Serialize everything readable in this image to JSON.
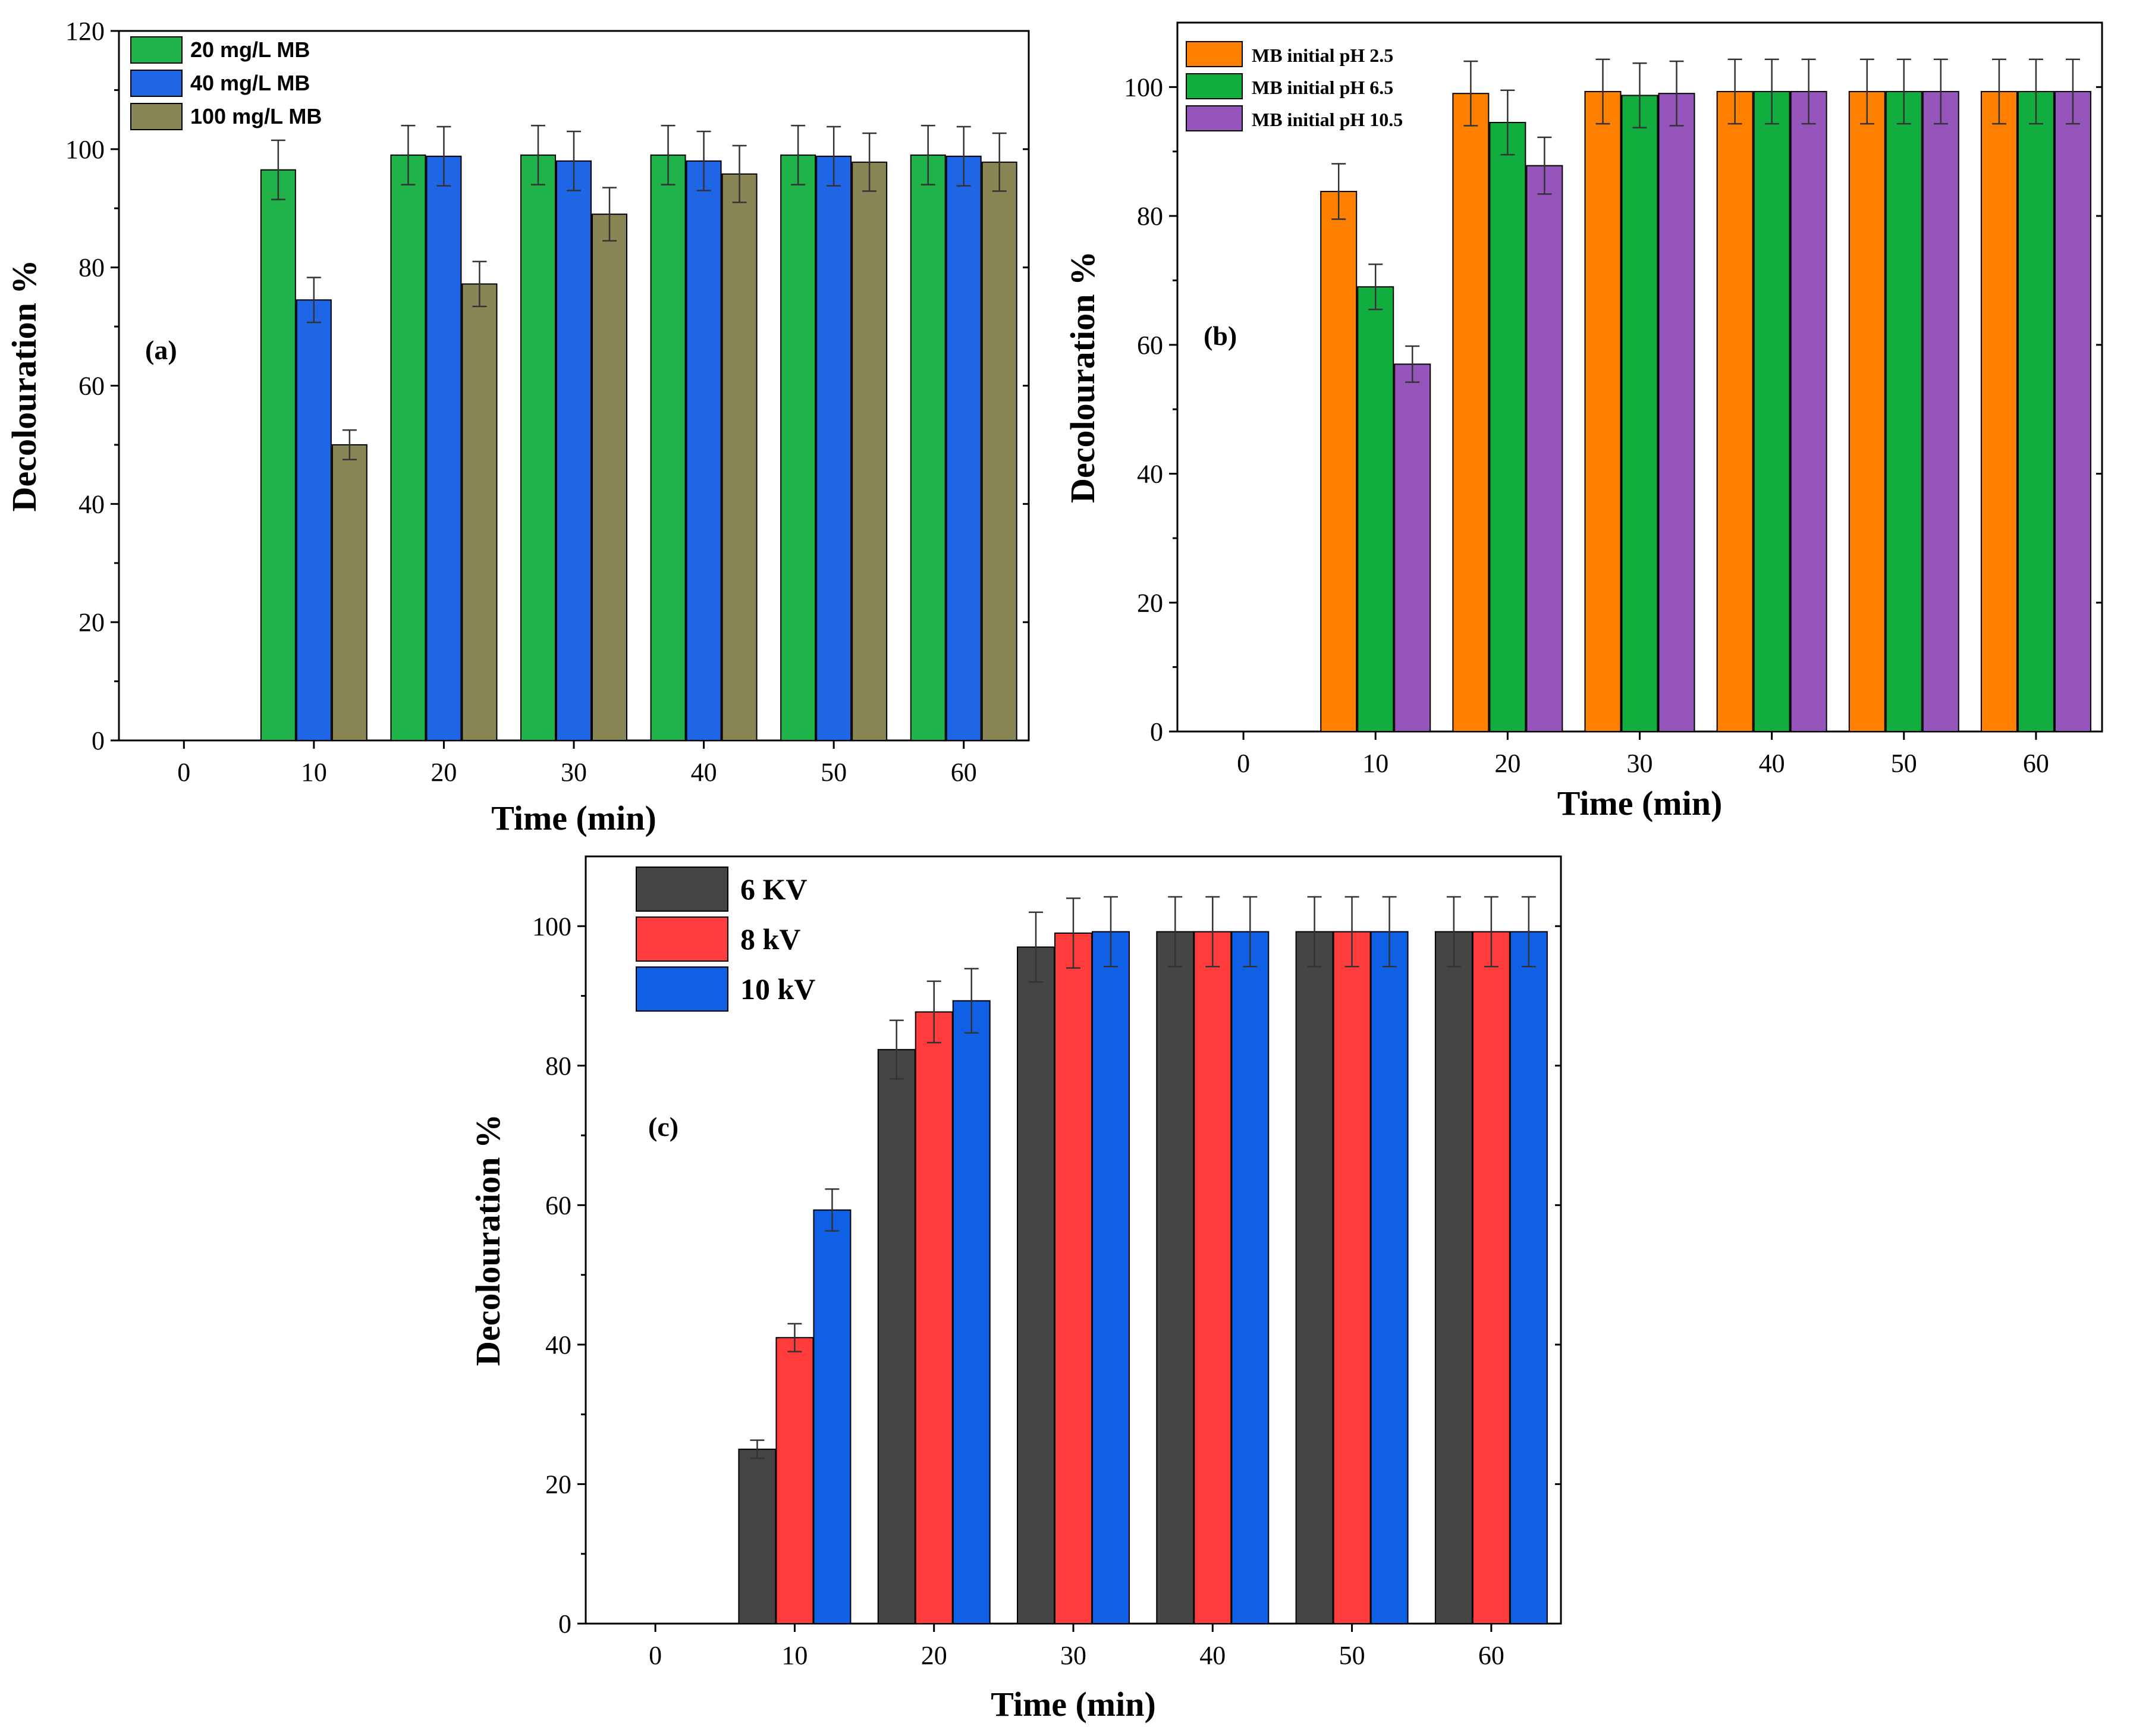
{
  "chart_data": [
    {
      "type": "bar",
      "panel": "(a)",
      "categories": [
        "0",
        "10",
        "20",
        "30",
        "40",
        "50",
        "60"
      ],
      "series": [
        {
          "name": "20 mg/L MB",
          "color": "#1fb34a",
          "values": [
            0,
            96.5,
            99,
            99,
            99,
            99,
            99
          ],
          "errors": [
            0,
            5,
            5,
            5,
            5,
            5,
            5
          ]
        },
        {
          "name": "40 mg/L MB",
          "color": "#1f66e6",
          "values": [
            0,
            74.5,
            98.8,
            98,
            98,
            98.8,
            98.8
          ],
          "errors": [
            0,
            3.8,
            5,
            5,
            5,
            5,
            5
          ]
        },
        {
          "name": "100 mg/L MB",
          "color": "#8a8555",
          "values": [
            0,
            50,
            77.2,
            89,
            95.8,
            97.8,
            97.8
          ],
          "errors": [
            0,
            2.5,
            3.8,
            4.5,
            4.8,
            4.9,
            4.9
          ]
        }
      ],
      "xlabel": "Time (min)",
      "ylabel": "Decolouration %",
      "ylim": [
        0,
        120
      ],
      "yticks": [
        "0",
        "20",
        "40",
        "60",
        "80",
        "100",
        "120"
      ],
      "legend": "top-left",
      "grid": false
    },
    {
      "type": "bar",
      "panel": "(b)",
      "categories": [
        "0",
        "10",
        "20",
        "30",
        "40",
        "50",
        "60"
      ],
      "series": [
        {
          "name": "MB initial pH 2.5",
          "color": "#ff8000",
          "values": [
            0,
            83.8,
            99,
            99.3,
            99.3,
            99.3,
            99.3
          ],
          "errors": [
            0,
            4.3,
            5,
            5,
            5,
            5,
            5
          ]
        },
        {
          "name": "MB initial pH 6.5",
          "color": "#12ad3f",
          "values": [
            0,
            69,
            94.5,
            98.7,
            99.3,
            99.3,
            99.3
          ],
          "errors": [
            0,
            3.5,
            5,
            5,
            5,
            5,
            5
          ]
        },
        {
          "name": "MB initial pH 10.5",
          "color": "#9655bb",
          "values": [
            0,
            57,
            87.8,
            99,
            99.3,
            99.3,
            99.3
          ],
          "errors": [
            0,
            2.8,
            4.4,
            5,
            5,
            5,
            5
          ]
        }
      ],
      "xlabel": "Time (min)",
      "ylabel": "Decolouration %",
      "ylim": [
        0,
        110
      ],
      "yticks": [
        "0",
        "20",
        "40",
        "60",
        "80",
        "100"
      ],
      "legend": "top-left",
      "grid": false
    },
    {
      "type": "bar",
      "panel": "(c)",
      "categories": [
        "0",
        "10",
        "20",
        "30",
        "40",
        "50",
        "60"
      ],
      "series": [
        {
          "name": "6 KV",
          "color": "#454545",
          "values": [
            0,
            25,
            82.3,
            97,
            99.2,
            99.2,
            99.2
          ],
          "errors": [
            0,
            1.3,
            4.2,
            5,
            5,
            5,
            5
          ]
        },
        {
          "name": "8 kV",
          "color": "#ff3b3b",
          "values": [
            0,
            41,
            87.7,
            99,
            99.2,
            99.2,
            99.2
          ],
          "errors": [
            0,
            2,
            4.4,
            5,
            5,
            5,
            5
          ]
        },
        {
          "name": "10 kV",
          "color": "#1060e6",
          "values": [
            0,
            59.3,
            89.3,
            99.2,
            99.2,
            99.2,
            99.2
          ],
          "errors": [
            0,
            3,
            4.6,
            5,
            5,
            5,
            5
          ]
        }
      ],
      "xlabel": "Time (min)",
      "ylabel": "Decolouration %",
      "ylim": [
        0,
        110
      ],
      "yticks": [
        "0",
        "20",
        "40",
        "60",
        "80",
        "100"
      ],
      "legend": "top-left",
      "grid": false
    }
  ]
}
